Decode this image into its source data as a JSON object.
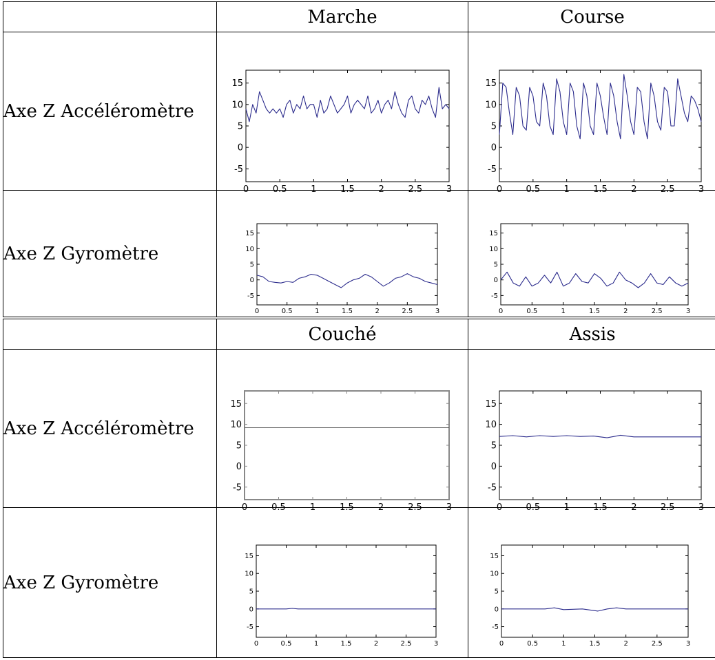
{
  "tables": [
    {
      "columns": [
        "Marche",
        "Course"
      ],
      "rows": [
        "Axe Z Accéléromètre",
        "Axe Z Gyromètre"
      ]
    },
    {
      "columns": [
        "Couché",
        "Assis"
      ],
      "rows": [
        "Axe Z Accéléromètre",
        "Axe Z Gyromètre"
      ]
    }
  ],
  "chart_data": [
    {
      "type": "line",
      "id": "marche-accel",
      "xlim": [
        0,
        3
      ],
      "ylim": [
        -8,
        18
      ],
      "xticks": [
        "0",
        "0.5",
        "1",
        "1.5",
        "2",
        "2.5",
        "3"
      ],
      "yticks": [
        "15",
        "10",
        "5",
        "0",
        "-5"
      ],
      "color": "#2b2b8c",
      "x": [
        0,
        0.05,
        0.1,
        0.15,
        0.2,
        0.25,
        0.3,
        0.35,
        0.4,
        0.45,
        0.5,
        0.55,
        0.6,
        0.65,
        0.7,
        0.75,
        0.8,
        0.85,
        0.9,
        0.95,
        1.0,
        1.05,
        1.1,
        1.15,
        1.2,
        1.25,
        1.3,
        1.35,
        1.4,
        1.45,
        1.5,
        1.55,
        1.6,
        1.65,
        1.7,
        1.75,
        1.8,
        1.85,
        1.9,
        1.95,
        2.0,
        2.05,
        2.1,
        2.15,
        2.2,
        2.25,
        2.3,
        2.35,
        2.4,
        2.45,
        2.5,
        2.55,
        2.6,
        2.65,
        2.7,
        2.75,
        2.8,
        2.85,
        2.9,
        2.95,
        3.0
      ],
      "y": [
        9,
        6,
        10,
        8,
        13,
        11,
        9,
        8,
        9,
        8,
        9,
        7,
        10,
        11,
        8,
        10,
        9,
        12,
        9,
        10,
        10,
        7,
        11,
        8,
        9,
        12,
        10,
        8,
        9,
        10,
        12,
        8,
        10,
        11,
        10,
        9,
        12,
        8,
        9,
        11,
        8,
        10,
        11,
        9,
        13,
        10,
        8,
        7,
        11,
        12,
        9,
        8,
        11,
        10,
        12,
        9,
        7,
        14,
        9,
        10,
        9
      ]
    },
    {
      "type": "line",
      "id": "course-accel",
      "xlim": [
        0,
        3
      ],
      "ylim": [
        -8,
        18
      ],
      "xticks": [
        "0",
        "0.5",
        "1",
        "1.5",
        "2",
        "2.5",
        "3"
      ],
      "yticks": [
        "15",
        "10",
        "5",
        "0",
        "-5"
      ],
      "color": "#2b2b8c",
      "x": [
        0,
        0.05,
        0.1,
        0.15,
        0.2,
        0.25,
        0.3,
        0.35,
        0.4,
        0.45,
        0.5,
        0.55,
        0.6,
        0.65,
        0.7,
        0.75,
        0.8,
        0.85,
        0.9,
        0.95,
        1.0,
        1.05,
        1.1,
        1.15,
        1.2,
        1.25,
        1.3,
        1.35,
        1.4,
        1.45,
        1.5,
        1.55,
        1.6,
        1.65,
        1.7,
        1.75,
        1.8,
        1.85,
        1.9,
        1.95,
        2.0,
        2.05,
        2.1,
        2.15,
        2.2,
        2.25,
        2.3,
        2.35,
        2.4,
        2.45,
        2.5,
        2.55,
        2.6,
        2.65,
        2.7,
        2.75,
        2.8,
        2.85,
        2.9,
        2.95,
        3.0
      ],
      "y": [
        3,
        15,
        14,
        8,
        3,
        14,
        12,
        5,
        4,
        14,
        12,
        6,
        5,
        15,
        12,
        5,
        3,
        16,
        13,
        6,
        3,
        15,
        13,
        5,
        2,
        15,
        12,
        5,
        3,
        15,
        12,
        7,
        3,
        15,
        12,
        6,
        2,
        17,
        12,
        6,
        3,
        14,
        13,
        6,
        2,
        15,
        12,
        6,
        4,
        14,
        13,
        5,
        5,
        16,
        12,
        8,
        6,
        12,
        11,
        9,
        6
      ]
    },
    {
      "type": "line",
      "id": "marche-gyro",
      "xlim": [
        0,
        3
      ],
      "ylim": [
        -8,
        18
      ],
      "xticks": [
        "0",
        "0.5",
        "1",
        "1.5",
        "2",
        "2.5",
        "3"
      ],
      "yticks": [
        "15",
        "10",
        "5",
        "0",
        "-5"
      ],
      "color": "#2b2b8c",
      "x": [
        0,
        0.1,
        0.2,
        0.3,
        0.4,
        0.5,
        0.6,
        0.7,
        0.8,
        0.9,
        1.0,
        1.1,
        1.2,
        1.3,
        1.4,
        1.5,
        1.6,
        1.7,
        1.8,
        1.9,
        2.0,
        2.1,
        2.2,
        2.3,
        2.4,
        2.5,
        2.6,
        2.7,
        2.8,
        2.9,
        3.0
      ],
      "y": [
        1.5,
        1,
        -0.5,
        -0.8,
        -1,
        -0.5,
        -0.8,
        0.5,
        1,
        1.8,
        1.5,
        0.5,
        -0.5,
        -1.5,
        -2.5,
        -1,
        0,
        0.5,
        1.8,
        1,
        -0.5,
        -2,
        -1,
        0.5,
        1,
        2,
        1,
        0.5,
        -0.5,
        -1,
        -1.5
      ]
    },
    {
      "type": "line",
      "id": "course-gyro",
      "xlim": [
        0,
        3
      ],
      "ylim": [
        -8,
        18
      ],
      "xticks": [
        "0",
        "0.5",
        "1",
        "1.5",
        "2",
        "2.5",
        "3"
      ],
      "yticks": [
        "15",
        "10",
        "5",
        "0",
        "-5"
      ],
      "color": "#2b2b8c",
      "x": [
        0,
        0.1,
        0.2,
        0.3,
        0.4,
        0.5,
        0.6,
        0.7,
        0.8,
        0.9,
        1.0,
        1.1,
        1.2,
        1.3,
        1.4,
        1.5,
        1.6,
        1.7,
        1.8,
        1.9,
        2.0,
        2.1,
        2.2,
        2.3,
        2.4,
        2.5,
        2.6,
        2.7,
        2.8,
        2.9,
        3.0
      ],
      "y": [
        0,
        2.5,
        -1,
        -2,
        1,
        -2,
        -1,
        1.5,
        -1,
        2.5,
        -2,
        -1,
        2,
        -0.5,
        -1,
        2,
        0.5,
        -2,
        -1,
        2.5,
        0,
        -1,
        -2.5,
        -1,
        2,
        -1,
        -1.5,
        1,
        -1,
        -2,
        -1
      ]
    },
    {
      "type": "line",
      "id": "couche-accel",
      "xlim": [
        0,
        3
      ],
      "ylim": [
        -8,
        18
      ],
      "xticks": [
        "0",
        "0.5",
        "1",
        "1.5",
        "2",
        "2.5",
        "3"
      ],
      "yticks": [
        "15",
        "10",
        "5",
        "0",
        "-5"
      ],
      "color": "#555555",
      "framecolor": "#888888",
      "x": [
        0,
        3.0
      ],
      "y": [
        9.2,
        9.2
      ]
    },
    {
      "type": "line",
      "id": "assis-accel",
      "xlim": [
        0,
        3
      ],
      "ylim": [
        -8,
        18
      ],
      "xticks": [
        "0",
        "0.5",
        "1",
        "1.5",
        "2",
        "2.5",
        "3"
      ],
      "yticks": [
        "15",
        "10",
        "5",
        "0",
        "-5"
      ],
      "color": "#2b2b8c",
      "x": [
        0,
        0.2,
        0.4,
        0.6,
        0.8,
        1.0,
        1.2,
        1.4,
        1.6,
        1.8,
        2.0,
        2.2,
        2.4,
        2.6,
        2.8,
        3.0
      ],
      "y": [
        7.1,
        7.3,
        7.0,
        7.3,
        7.1,
        7.3,
        7.1,
        7.2,
        6.8,
        7.4,
        7.0,
        7.0,
        7.0,
        7.0,
        7.0,
        7.0
      ]
    },
    {
      "type": "line",
      "id": "couche-gyro",
      "xlim": [
        0,
        3
      ],
      "ylim": [
        -8,
        18
      ],
      "xticks": [
        "0",
        "0.5",
        "1",
        "1.5",
        "2",
        "2.5",
        "3"
      ],
      "yticks": [
        "15",
        "10",
        "5",
        "0",
        "-5"
      ],
      "color": "#2b2b8c",
      "x": [
        0,
        0.5,
        0.6,
        0.7,
        1.0,
        1.5,
        2.0,
        2.5,
        3.0
      ],
      "y": [
        0,
        0,
        0.15,
        0,
        0,
        0,
        0,
        0,
        0
      ]
    },
    {
      "type": "line",
      "id": "assis-gyro",
      "xlim": [
        0,
        3
      ],
      "ylim": [
        -8,
        18
      ],
      "xticks": [
        "0",
        "0.5",
        "1",
        "1.5",
        "2",
        "2.5",
        "3"
      ],
      "yticks": [
        "15",
        "10",
        "5",
        "0",
        "-5"
      ],
      "color": "#2b2b8c",
      "x": [
        0,
        0.4,
        0.7,
        0.85,
        1.0,
        1.3,
        1.55,
        1.7,
        1.85,
        2.0,
        2.3,
        2.6,
        3.0
      ],
      "y": [
        0,
        0,
        0,
        0.3,
        -0.2,
        0,
        -0.6,
        0,
        0.3,
        0,
        0,
        0,
        0
      ]
    }
  ]
}
